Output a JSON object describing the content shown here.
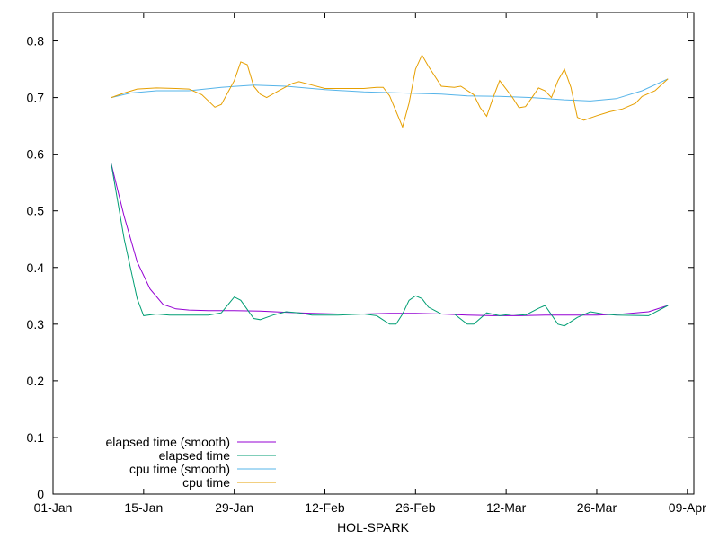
{
  "chart_data": {
    "type": "line",
    "xlabel": "HOL-SPARK",
    "ylabel": "",
    "xlim": [
      "2024-01-01",
      "2024-04-09"
    ],
    "ylim": [
      0,
      0.85
    ],
    "x_ticks": [
      "01-Jan",
      "15-Jan",
      "29-Jan",
      "12-Feb",
      "26-Feb",
      "12-Mar",
      "26-Mar",
      "09-Apr"
    ],
    "y_ticks": [
      "0",
      "0.1",
      "0.2",
      "0.3",
      "0.4",
      "0.5",
      "0.6",
      "0.7",
      "0.8"
    ],
    "legend_position": "bottom-left",
    "grid": false,
    "series": [
      {
        "name": "elapsed time (smooth)",
        "color": "#9400d3",
        "points": [
          [
            "2024-01-10",
            0.583
          ],
          [
            "2024-01-12",
            0.49
          ],
          [
            "2024-01-14",
            0.41
          ],
          [
            "2024-01-16",
            0.362
          ],
          [
            "2024-01-18",
            0.335
          ],
          [
            "2024-01-20",
            0.327
          ],
          [
            "2024-01-22",
            0.325
          ],
          [
            "2024-01-25",
            0.324
          ],
          [
            "2024-01-29",
            0.324
          ],
          [
            "2024-02-02",
            0.323
          ],
          [
            "2024-02-06",
            0.321
          ],
          [
            "2024-02-10",
            0.319
          ],
          [
            "2024-02-14",
            0.318
          ],
          [
            "2024-02-18",
            0.318
          ],
          [
            "2024-02-22",
            0.319
          ],
          [
            "2024-02-26",
            0.319
          ],
          [
            "2024-03-01",
            0.318
          ],
          [
            "2024-03-05",
            0.316
          ],
          [
            "2024-03-09",
            0.315
          ],
          [
            "2024-03-13",
            0.315
          ],
          [
            "2024-03-17",
            0.316
          ],
          [
            "2024-03-21",
            0.316
          ],
          [
            "2024-03-25",
            0.316
          ],
          [
            "2024-03-29",
            0.318
          ],
          [
            "2024-04-02",
            0.322
          ],
          [
            "2024-04-05",
            0.333
          ]
        ]
      },
      {
        "name": "elapsed time",
        "color": "#009e73",
        "points": [
          [
            "2024-01-10",
            0.583
          ],
          [
            "2024-01-12",
            0.45
          ],
          [
            "2024-01-14",
            0.345
          ],
          [
            "2024-01-15",
            0.315
          ],
          [
            "2024-01-17",
            0.318
          ],
          [
            "2024-01-19",
            0.316
          ],
          [
            "2024-01-22",
            0.316
          ],
          [
            "2024-01-25",
            0.316
          ],
          [
            "2024-01-27",
            0.32
          ],
          [
            "2024-01-29",
            0.348
          ],
          [
            "2024-01-30",
            0.342
          ],
          [
            "2024-02-01",
            0.31
          ],
          [
            "2024-02-02",
            0.308
          ],
          [
            "2024-02-04",
            0.316
          ],
          [
            "2024-02-06",
            0.322
          ],
          [
            "2024-02-08",
            0.32
          ],
          [
            "2024-02-10",
            0.316
          ],
          [
            "2024-02-14",
            0.316
          ],
          [
            "2024-02-18",
            0.318
          ],
          [
            "2024-02-20",
            0.315
          ],
          [
            "2024-02-22",
            0.3
          ],
          [
            "2024-02-23",
            0.3
          ],
          [
            "2024-02-24",
            0.318
          ],
          [
            "2024-02-25",
            0.342
          ],
          [
            "2024-02-26",
            0.35
          ],
          [
            "2024-02-27",
            0.345
          ],
          [
            "2024-02-28",
            0.33
          ],
          [
            "2024-03-01",
            0.318
          ],
          [
            "2024-03-03",
            0.318
          ],
          [
            "2024-03-05",
            0.3
          ],
          [
            "2024-03-06",
            0.3
          ],
          [
            "2024-03-08",
            0.32
          ],
          [
            "2024-03-10",
            0.315
          ],
          [
            "2024-03-12",
            0.318
          ],
          [
            "2024-03-14",
            0.316
          ],
          [
            "2024-03-16",
            0.328
          ],
          [
            "2024-03-17",
            0.333
          ],
          [
            "2024-03-19",
            0.3
          ],
          [
            "2024-03-20",
            0.297
          ],
          [
            "2024-03-22",
            0.312
          ],
          [
            "2024-03-24",
            0.322
          ],
          [
            "2024-03-26",
            0.318
          ],
          [
            "2024-03-28",
            0.316
          ],
          [
            "2024-04-02",
            0.315
          ],
          [
            "2024-04-05",
            0.333
          ]
        ]
      },
      {
        "name": "cpu time (smooth)",
        "color": "#56b4e9",
        "points": [
          [
            "2024-01-10",
            0.7
          ],
          [
            "2024-01-13",
            0.708
          ],
          [
            "2024-01-17",
            0.712
          ],
          [
            "2024-01-22",
            0.712
          ],
          [
            "2024-01-27",
            0.718
          ],
          [
            "2024-02-01",
            0.722
          ],
          [
            "2024-02-06",
            0.72
          ],
          [
            "2024-02-12",
            0.714
          ],
          [
            "2024-02-18",
            0.71
          ],
          [
            "2024-02-24",
            0.708
          ],
          [
            "2024-03-01",
            0.706
          ],
          [
            "2024-03-05",
            0.703
          ],
          [
            "2024-03-10",
            0.702
          ],
          [
            "2024-03-15",
            0.7
          ],
          [
            "2024-03-20",
            0.696
          ],
          [
            "2024-03-24",
            0.694
          ],
          [
            "2024-03-28",
            0.698
          ],
          [
            "2024-04-01",
            0.712
          ],
          [
            "2024-04-05",
            0.733
          ]
        ]
      },
      {
        "name": "cpu time",
        "color": "#e69f00",
        "points": [
          [
            "2024-01-10",
            0.7
          ],
          [
            "2024-01-12",
            0.708
          ],
          [
            "2024-01-14",
            0.715
          ],
          [
            "2024-01-17",
            0.717
          ],
          [
            "2024-01-20",
            0.716
          ],
          [
            "2024-01-22",
            0.715
          ],
          [
            "2024-01-24",
            0.705
          ],
          [
            "2024-01-26",
            0.683
          ],
          [
            "2024-01-27",
            0.688
          ],
          [
            "2024-01-29",
            0.73
          ],
          [
            "2024-01-30",
            0.763
          ],
          [
            "2024-01-31",
            0.758
          ],
          [
            "2024-02-01",
            0.72
          ],
          [
            "2024-02-02",
            0.706
          ],
          [
            "2024-02-03",
            0.7
          ],
          [
            "2024-02-05",
            0.713
          ],
          [
            "2024-02-07",
            0.725
          ],
          [
            "2024-02-08",
            0.728
          ],
          [
            "2024-02-10",
            0.722
          ],
          [
            "2024-02-12",
            0.716
          ],
          [
            "2024-02-15",
            0.716
          ],
          [
            "2024-02-18",
            0.716
          ],
          [
            "2024-02-20",
            0.718
          ],
          [
            "2024-02-21",
            0.718
          ],
          [
            "2024-02-22",
            0.703
          ],
          [
            "2024-02-24",
            0.648
          ],
          [
            "2024-02-25",
            0.69
          ],
          [
            "2024-02-26",
            0.75
          ],
          [
            "2024-02-27",
            0.775
          ],
          [
            "2024-02-28",
            0.755
          ],
          [
            "2024-03-01",
            0.72
          ],
          [
            "2024-03-03",
            0.718
          ],
          [
            "2024-03-04",
            0.72
          ],
          [
            "2024-03-06",
            0.705
          ],
          [
            "2024-03-07",
            0.682
          ],
          [
            "2024-03-08",
            0.667
          ],
          [
            "2024-03-09",
            0.7
          ],
          [
            "2024-03-10",
            0.73
          ],
          [
            "2024-03-11",
            0.715
          ],
          [
            "2024-03-12",
            0.7
          ],
          [
            "2024-03-13",
            0.682
          ],
          [
            "2024-03-14",
            0.684
          ],
          [
            "2024-03-15",
            0.7
          ],
          [
            "2024-03-16",
            0.717
          ],
          [
            "2024-03-17",
            0.712
          ],
          [
            "2024-03-18",
            0.7
          ],
          [
            "2024-03-19",
            0.73
          ],
          [
            "2024-03-20",
            0.75
          ],
          [
            "2024-03-21",
            0.718
          ],
          [
            "2024-03-22",
            0.665
          ],
          [
            "2024-03-23",
            0.66
          ],
          [
            "2024-03-25",
            0.668
          ],
          [
            "2024-03-27",
            0.675
          ],
          [
            "2024-03-29",
            0.68
          ],
          [
            "2024-03-31",
            0.69
          ],
          [
            "2024-04-01",
            0.702
          ],
          [
            "2024-04-03",
            0.712
          ],
          [
            "2024-04-05",
            0.733
          ]
        ]
      }
    ]
  }
}
